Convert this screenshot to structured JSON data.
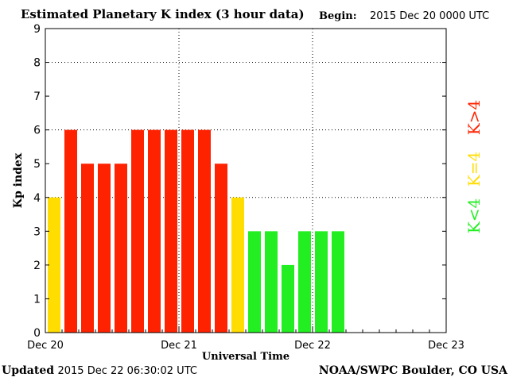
{
  "header": {
    "title": "Estimated Planetary K index (3 hour data)",
    "begin_label": "Begin:",
    "begin_value": "2015 Dec 20 0000 UTC"
  },
  "footer": {
    "updated_label": "Updated",
    "updated_value": "2015 Dec 22 06:30:02 UTC",
    "source": "NOAA/SWPC Boulder, CO USA"
  },
  "colors": {
    "k_below_4": "#22ee22",
    "k_equal_4": "#ffdd00",
    "k_above_4": "#ff2200",
    "grid": "#000000",
    "axis": "#000000"
  },
  "chart_data": {
    "type": "bar",
    "xlabel": "Universal Time",
    "ylabel": "Kp index",
    "ylim": [
      0,
      9
    ],
    "yticks": [
      0,
      1,
      2,
      3,
      4,
      5,
      6,
      7,
      8,
      9
    ],
    "xlim": [
      0,
      72
    ],
    "x_unit": "hours from 2015 Dec 20 0000 UTC",
    "xticks": [
      {
        "x": 0,
        "label": "Dec 20"
      },
      {
        "x": 24,
        "label": "Dec 21"
      },
      {
        "x": 48,
        "label": "Dec 22"
      },
      {
        "x": 72,
        "label": "Dec 23"
      }
    ],
    "grid": "dotted at Kp 4, 6, 8 and at each day boundary",
    "bar_interval_hours": 3,
    "values": [
      4,
      6,
      5,
      5,
      5,
      6,
      6,
      6,
      6,
      6,
      5,
      4,
      3,
      3,
      2,
      3,
      3,
      3
    ],
    "legend": [
      {
        "label": "K<4",
        "color_key": "k_below_4"
      },
      {
        "label": "K=4",
        "color_key": "k_equal_4"
      },
      {
        "label": "K>4",
        "color_key": "k_above_4"
      }
    ]
  }
}
